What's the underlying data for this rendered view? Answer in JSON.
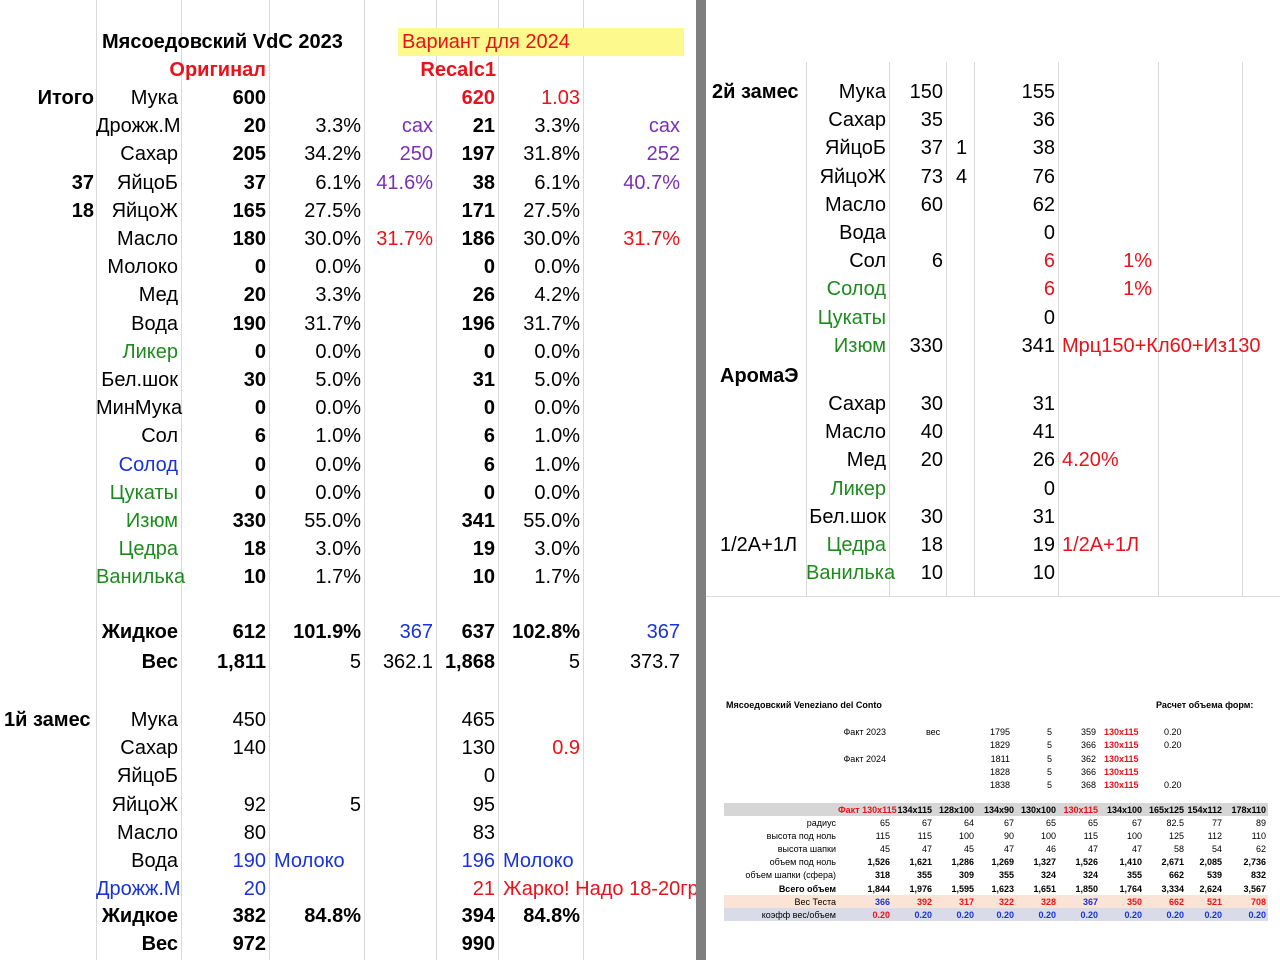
{
  "left": {
    "title": "Мясоедовский VdC 2023",
    "variant": "Вариант для 2024",
    "col_original": "Оригинал",
    "col_recalc": "Recalc1",
    "itogo": "Итого",
    "flour_coeff": "1.03",
    "sax": "сах",
    "rows": [
      {
        "pre": "",
        "name": "Мука",
        "a": "600",
        "ap": "",
        "ae": "",
        "b": "620",
        "bp": "",
        "be": ""
      },
      {
        "pre": "",
        "name": "Дрожж.М",
        "a": "20",
        "ap": "3.3%",
        "ae": "сах",
        "b": "21",
        "bp": "3.3%",
        "be": "сах"
      },
      {
        "pre": "",
        "name": "Сахар",
        "a": "205",
        "ap": "34.2%",
        "ae": "250",
        "b": "197",
        "bp": "31.8%",
        "be": "252"
      },
      {
        "pre": "37",
        "name": "ЯйцоБ",
        "a": "37",
        "ap": "6.1%",
        "ae": "41.6%",
        "b": "38",
        "bp": "6.1%",
        "be": "40.7%"
      },
      {
        "pre": "18",
        "name": "ЯйцоЖ",
        "a": "165",
        "ap": "27.5%",
        "ae": "",
        "b": "171",
        "bp": "27.5%",
        "be": ""
      },
      {
        "pre": "",
        "name": "Масло",
        "a": "180",
        "ap": "30.0%",
        "ae": "31.7%",
        "b": "186",
        "bp": "30.0%",
        "be": "31.7%"
      },
      {
        "pre": "",
        "name": "Молоко",
        "a": "0",
        "ap": "0.0%",
        "ae": "",
        "b": "0",
        "bp": "0.0%",
        "be": ""
      },
      {
        "pre": "",
        "name": "Мед",
        "a": "20",
        "ap": "3.3%",
        "ae": "",
        "b": "26",
        "bp": "4.2%",
        "be": ""
      },
      {
        "pre": "",
        "name": "Вода",
        "a": "190",
        "ap": "31.7%",
        "ae": "",
        "b": "196",
        "bp": "31.7%",
        "be": ""
      },
      {
        "pre": "",
        "name": "Ликер",
        "a": "0",
        "ap": "0.0%",
        "ae": "",
        "b": "0",
        "bp": "0.0%",
        "be": ""
      },
      {
        "pre": "",
        "name": "Бел.шок",
        "a": "30",
        "ap": "5.0%",
        "ae": "",
        "b": "31",
        "bp": "5.0%",
        "be": ""
      },
      {
        "pre": "",
        "name": "МинМука",
        "a": "0",
        "ap": "0.0%",
        "ae": "",
        "b": "0",
        "bp": "0.0%",
        "be": ""
      },
      {
        "pre": "",
        "name": "Сол",
        "a": "6",
        "ap": "1.0%",
        "ae": "",
        "b": "6",
        "bp": "1.0%",
        "be": ""
      },
      {
        "pre": "",
        "name": "Солод",
        "a": "0",
        "ap": "0.0%",
        "ae": "",
        "b": "6",
        "bp": "1.0%",
        "be": ""
      },
      {
        "pre": "",
        "name": "Цукаты",
        "a": "0",
        "ap": "0.0%",
        "ae": "",
        "b": "0",
        "bp": "0.0%",
        "be": ""
      },
      {
        "pre": "",
        "name": "Изюм",
        "a": "330",
        "ap": "55.0%",
        "ae": "",
        "b": "341",
        "bp": "55.0%",
        "be": ""
      },
      {
        "pre": "",
        "name": "Цедра",
        "a": "18",
        "ap": "3.0%",
        "ae": "",
        "b": "19",
        "bp": "3.0%",
        "be": ""
      },
      {
        "pre": "",
        "name": "Ванилька",
        "a": "10",
        "ap": "1.7%",
        "ae": "",
        "b": "10",
        "bp": "1.7%",
        "be": ""
      }
    ],
    "liquid": {
      "name": "Жидкое",
      "a": "612",
      "ap": "101.9%",
      "ae": "367",
      "b": "637",
      "bp": "102.8%",
      "be": "367"
    },
    "weight": {
      "name": "Вес",
      "a": "1,811",
      "ap": "5",
      "ae": "362.1",
      "b": "1,868",
      "bp": "5",
      "be": "373.7"
    },
    "first_mix": {
      "label": "1й замес",
      "rows": [
        {
          "name": "Мука",
          "a": "450",
          "ap": "",
          "b": "465",
          "bp": ""
        },
        {
          "name": "Сахар",
          "a": "140",
          "ap": "",
          "b": "130",
          "bp": "0.9"
        },
        {
          "name": "ЯйцоБ",
          "a": "",
          "ap": "",
          "b": "0",
          "bp": ""
        },
        {
          "name": "ЯйцоЖ",
          "a": "92",
          "ap": "5",
          "b": "95",
          "bp": ""
        },
        {
          "name": "Масло",
          "a": "80",
          "ap": "",
          "b": "83",
          "bp": ""
        },
        {
          "name": "Вода",
          "a": "190",
          "ap": "Молоко",
          "b": "196",
          "bp": "Молоко"
        },
        {
          "name": "Дрожж.М",
          "a": "20",
          "ap": "",
          "b": "21",
          "bp": "Жарко! Надо 18-20гр"
        }
      ],
      "liquid": {
        "name": "Жидкое",
        "a": "382",
        "ap": "84.8%",
        "b": "394",
        "bp": "84.8%"
      },
      "weight": {
        "name": "Вес",
        "a": "972",
        "b": "990"
      }
    }
  },
  "right": {
    "second_mix": "2й замес",
    "rows": [
      {
        "pre": "",
        "name": "Мука",
        "a": "150",
        "n": "",
        "b": "155",
        "note": ""
      },
      {
        "pre": "",
        "name": "Сахар",
        "a": "35",
        "n": "",
        "b": "36",
        "note": ""
      },
      {
        "pre": "",
        "name": "ЯйцоБ",
        "a": "37",
        "n": "1",
        "b": "38",
        "note": ""
      },
      {
        "pre": "",
        "name": "ЯйцоЖ",
        "a": "73",
        "n": "4",
        "b": "76",
        "note": ""
      },
      {
        "pre": "",
        "name": "Масло",
        "a": "60",
        "n": "",
        "b": "62",
        "note": ""
      },
      {
        "pre": "",
        "name": "Вода",
        "a": "",
        "n": "",
        "b": "0",
        "note": ""
      },
      {
        "pre": "",
        "name": "Сол",
        "a": "6",
        "n": "",
        "b": "6",
        "note": "1%"
      },
      {
        "pre": "",
        "name": "Солод",
        "a": "",
        "n": "",
        "b": "6",
        "note": "1%"
      },
      {
        "pre": "",
        "name": "Цукаты",
        "a": "",
        "n": "",
        "b": "0",
        "note": ""
      },
      {
        "pre": "",
        "name": "Изюм",
        "a": "330",
        "n": "",
        "b": "341",
        "note": "Мрц150+Кл60+Из130"
      }
    ],
    "aroma": "АромаЭ",
    "aroma_rows": [
      {
        "pre": "",
        "name": "Сахар",
        "a": "30",
        "b": "31",
        "note": ""
      },
      {
        "pre": "",
        "name": "Масло",
        "a": "40",
        "b": "41",
        "note": ""
      },
      {
        "pre": "",
        "name": "Мед",
        "a": "20",
        "b": "26",
        "note": "4.20%"
      },
      {
        "pre": "",
        "name": "Ликер",
        "a": "",
        "b": "0",
        "note": ""
      },
      {
        "pre": "",
        "name": "Бел.шок",
        "a": "30",
        "b": "31",
        "note": ""
      },
      {
        "pre": "1/2А+1Л",
        "name": "Цедра",
        "a": "18",
        "b": "19",
        "note": "1/2А+1Л"
      },
      {
        "pre": "",
        "name": "Ванилька",
        "a": "10",
        "b": "10",
        "note": ""
      }
    ]
  },
  "small": {
    "title": "Мясоедовский Veneziano del Conto",
    "calc": "Расчет объема форм:",
    "facts": [
      {
        "label": "Факт 2023",
        "w": "вес",
        "v": "1795",
        "n": "5",
        "r": "359",
        "f": "130x115",
        "k": "0.20"
      },
      {
        "label": "",
        "w": "",
        "v": "1829",
        "n": "5",
        "r": "366",
        "f": "130x115",
        "k": "0.20"
      },
      {
        "label": "Факт 2024",
        "w": "",
        "v": "1811",
        "n": "5",
        "r": "362",
        "f": "130x115",
        "k": ""
      },
      {
        "label": "",
        "w": "",
        "v": "1828",
        "n": "5",
        "r": "366",
        "f": "130x115",
        "k": ""
      },
      {
        "label": "",
        "w": "",
        "v": "1838",
        "n": "5",
        "r": "368",
        "f": "130x115",
        "k": "0.20"
      }
    ],
    "headers": [
      "Факт 130x115",
      "134x115",
      "128x100",
      "134x90",
      "130x100",
      "130x115",
      "134x100",
      "165x125",
      "154x112",
      "178x110"
    ],
    "rows": [
      {
        "label": "радиус",
        "vals": [
          "65",
          "67",
          "64",
          "67",
          "65",
          "65",
          "67",
          "82.5",
          "77",
          "89"
        ]
      },
      {
        "label": "высота под ноль",
        "vals": [
          "115",
          "115",
          "100",
          "90",
          "100",
          "115",
          "100",
          "125",
          "112",
          "110"
        ]
      },
      {
        "label": "высота шапки",
        "vals": [
          "45",
          "47",
          "45",
          "47",
          "46",
          "47",
          "47",
          "58",
          "54",
          "62"
        ]
      },
      {
        "label": "объем под ноль",
        "vals": [
          "1,526",
          "1,621",
          "1,286",
          "1,269",
          "1,327",
          "1,526",
          "1,410",
          "2,671",
          "2,085",
          "2,736"
        ]
      },
      {
        "label": "объем шапки (сфера)",
        "vals": [
          "318",
          "355",
          "309",
          "355",
          "324",
          "324",
          "355",
          "662",
          "539",
          "832"
        ]
      },
      {
        "label": "Всего объем",
        "vals": [
          "1,844",
          "1,976",
          "1,595",
          "1,623",
          "1,651",
          "1,850",
          "1,764",
          "3,334",
          "2,624",
          "3,567"
        ]
      },
      {
        "label": "Вес Теста",
        "vals": [
          "366",
          "392",
          "317",
          "322",
          "328",
          "367",
          "350",
          "662",
          "521",
          "708"
        ]
      },
      {
        "label": "коэфф вес/объем",
        "vals": [
          "0.20",
          "0.20",
          "0.20",
          "0.20",
          "0.20",
          "0.20",
          "0.20",
          "0.20",
          "0.20",
          "0.20"
        ]
      }
    ]
  }
}
